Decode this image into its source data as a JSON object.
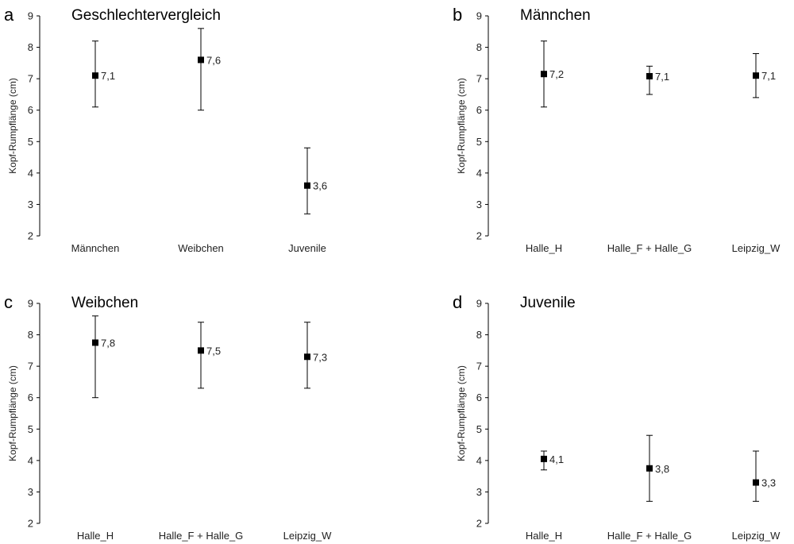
{
  "chart_data": [
    {
      "type": "scatter",
      "panel": "a",
      "title": "Geschlechtervergleich",
      "ylabel": "Kopf-Rumpflänge (cm)",
      "ylim": [
        2,
        9
      ],
      "yticks": [
        "2",
        "3",
        "4",
        "5",
        "6",
        "7",
        "8",
        "9"
      ],
      "categories": [
        "Männchen",
        "Weibchen",
        "Juvenile"
      ],
      "values": [
        7.1,
        7.6,
        3.6
      ],
      "labels": [
        "7,1",
        "7,6",
        "3,6"
      ],
      "err_low": [
        6.1,
        6.0,
        2.7
      ],
      "err_high": [
        8.2,
        8.6,
        4.8
      ]
    },
    {
      "type": "scatter",
      "panel": "b",
      "title": "Männchen",
      "ylabel": "Kopf-Rumpflänge (cm)",
      "ylim": [
        2,
        9
      ],
      "yticks": [
        "2",
        "3",
        "4",
        "5",
        "6",
        "7",
        "8",
        "9"
      ],
      "categories": [
        "Halle_H",
        "Halle_F + Halle_G",
        "Leipzig_W"
      ],
      "values": [
        7.15,
        7.08,
        7.1
      ],
      "labels": [
        "7,2",
        "7,1",
        "7,1"
      ],
      "err_low": [
        6.1,
        6.5,
        6.4
      ],
      "err_high": [
        8.2,
        7.4,
        7.8
      ]
    },
    {
      "type": "scatter",
      "panel": "c",
      "title": "Weibchen",
      "ylabel": "Kopf-Rumpflänge (cm)",
      "ylim": [
        2,
        9
      ],
      "yticks": [
        "2",
        "3",
        "4",
        "5",
        "6",
        "7",
        "8",
        "9"
      ],
      "categories": [
        "Halle_H",
        "Halle_F + Halle_G",
        "Leipzig_W"
      ],
      "values": [
        7.75,
        7.5,
        7.3
      ],
      "labels": [
        "7,8",
        "7,5",
        "7,3"
      ],
      "err_low": [
        6.0,
        6.3,
        6.3
      ],
      "err_high": [
        8.6,
        8.4,
        8.4
      ]
    },
    {
      "type": "scatter",
      "panel": "d",
      "title": "Juvenile",
      "ylabel": "Kopf-Rumpflänge (cm)",
      "ylim": [
        2,
        9
      ],
      "yticks": [
        "2",
        "3",
        "4",
        "5",
        "6",
        "7",
        "8",
        "9"
      ],
      "categories": [
        "Halle_H",
        "Halle_F + Halle_G",
        "Leipzig_W"
      ],
      "values": [
        4.05,
        3.75,
        3.3
      ],
      "labels": [
        "4,1",
        "3,8",
        "3,3"
      ],
      "err_low": [
        3.7,
        2.7,
        2.7
      ],
      "err_high": [
        4.3,
        4.8,
        4.3
      ]
    }
  ]
}
